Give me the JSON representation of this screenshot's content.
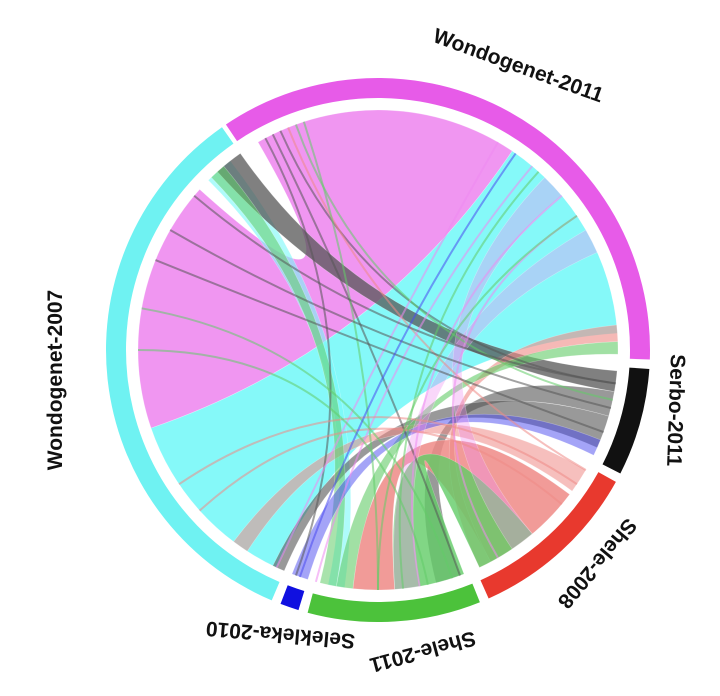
{
  "diagram": {
    "type": "chord",
    "segments": [
      {
        "id": "wondogenet-2011",
        "label": "Wondogenet-2011",
        "color": "#e75be8"
      },
      {
        "id": "serbo-2011",
        "label": "Serbo-2011",
        "color": "#111111"
      },
      {
        "id": "shele-2008",
        "label": "Shele-2008",
        "color": "#e8392e"
      },
      {
        "id": "shele-2011",
        "label": "Shele-2011",
        "color": "#4cc23b"
      },
      {
        "id": "selekleka-2010",
        "label": "Selekleka-2010",
        "color": "#1010e0"
      },
      {
        "id": "wondogenet-2007",
        "label": "Wondogenet-2007",
        "color": "#6ff2f2"
      }
    ],
    "ribbon_colors": {
      "wondogenet-2011": "#ee8bf0",
      "wondogenet-2007": "#78f8f8",
      "serbo-2011": "#555555",
      "shele-2008": "#ef8a86",
      "shele-2011": "#62cc67",
      "selekleka-2010": "#4a4af0"
    }
  }
}
